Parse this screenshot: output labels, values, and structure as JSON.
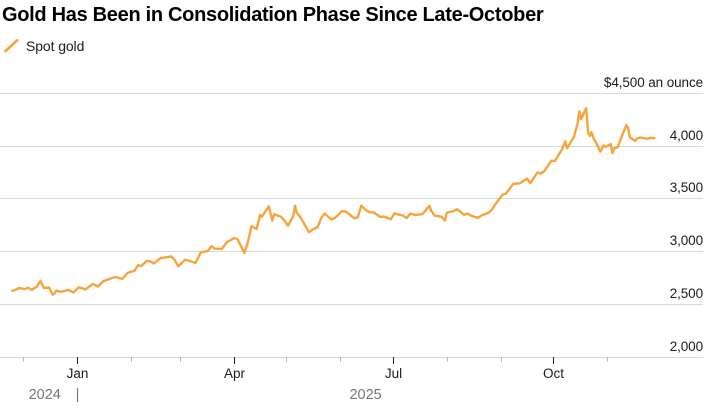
{
  "header": {
    "title": "Gold Has Been in Consolidation Phase Since Late-October"
  },
  "legend": {
    "label": "Spot gold"
  },
  "colors": {
    "line": "#F6A43B",
    "grid": "#D8D8D8",
    "title_text": "#000000",
    "axis_text": "#1B1B1B",
    "year_text": "#767676",
    "tick_minor": "#BCBCBC",
    "tick_major": "#1B1B1B",
    "background": "#FFFFFF"
  },
  "chart_data": {
    "type": "line",
    "title": "Gold Has Been in Consolidation Phase Since Late-October",
    "grid": true,
    "legend_position": "top-left",
    "y_axis": {
      "min": 2000,
      "max": 4500,
      "unit_label": "$4,500 an ounce",
      "ticks": [
        {
          "value": 4500,
          "label": "$4,500 an ounce"
        },
        {
          "value": 4000,
          "label": "4,000"
        },
        {
          "value": 3500,
          "label": "3,500"
        },
        {
          "value": 3000,
          "label": "3,000"
        },
        {
          "value": 2500,
          "label": "2,500"
        },
        {
          "value": 2000,
          "label": "2,000"
        }
      ]
    },
    "x_axis": {
      "major_ticks": [
        {
          "date": "2025-01-01",
          "label": "Jan"
        },
        {
          "date": "2025-04-01",
          "label": "Apr"
        },
        {
          "date": "2025-07-01",
          "label": "Jul"
        },
        {
          "date": "2025-10-01",
          "label": "Oct"
        }
      ],
      "minor_ticks": [
        "2024-12-01",
        "2025-02-01",
        "2025-03-01",
        "2025-05-01",
        "2025-06-01",
        "2025-08-01",
        "2025-09-01",
        "2025-11-01"
      ],
      "year_labels": [
        {
          "label": "2024",
          "position": "start-of-range"
        },
        {
          "label": "|",
          "position": "year-boundary"
        },
        {
          "label": "2025",
          "position": "center-of-2025"
        }
      ]
    },
    "series": [
      {
        "name": "Spot gold",
        "points": [
          [
            "2024-11-25",
            2622
          ],
          [
            "2024-11-27",
            2636
          ],
          [
            "2024-11-29",
            2650
          ],
          [
            "2024-12-02",
            2639
          ],
          [
            "2024-12-04",
            2652
          ],
          [
            "2024-12-06",
            2633
          ],
          [
            "2024-12-09",
            2662
          ],
          [
            "2024-12-11",
            2718
          ],
          [
            "2024-12-12",
            2682
          ],
          [
            "2024-12-13",
            2650
          ],
          [
            "2024-12-16",
            2655
          ],
          [
            "2024-12-18",
            2586
          ],
          [
            "2024-12-19",
            2596
          ],
          [
            "2024-12-20",
            2624
          ],
          [
            "2024-12-23",
            2614
          ],
          [
            "2024-12-27",
            2632
          ],
          [
            "2024-12-30",
            2607
          ],
          [
            "2025-01-02",
            2657
          ],
          [
            "2025-01-06",
            2637
          ],
          [
            "2025-01-08",
            2662
          ],
          [
            "2025-01-10",
            2690
          ],
          [
            "2025-01-13",
            2664
          ],
          [
            "2025-01-16",
            2714
          ],
          [
            "2025-01-21",
            2745
          ],
          [
            "2025-01-23",
            2754
          ],
          [
            "2025-01-27",
            2737
          ],
          [
            "2025-01-30",
            2793
          ],
          [
            "2025-02-03",
            2814
          ],
          [
            "2025-02-05",
            2866
          ],
          [
            "2025-02-07",
            2860
          ],
          [
            "2025-02-10",
            2906
          ],
          [
            "2025-02-12",
            2903
          ],
          [
            "2025-02-14",
            2882
          ],
          [
            "2025-02-18",
            2934
          ],
          [
            "2025-02-20",
            2938
          ],
          [
            "2025-02-24",
            2950
          ],
          [
            "2025-02-26",
            2915
          ],
          [
            "2025-02-28",
            2857
          ],
          [
            "2025-03-04",
            2918
          ],
          [
            "2025-03-06",
            2910
          ],
          [
            "2025-03-10",
            2888
          ],
          [
            "2025-03-13",
            2988
          ],
          [
            "2025-03-17",
            3000
          ],
          [
            "2025-03-19",
            3046
          ],
          [
            "2025-03-21",
            3023
          ],
          [
            "2025-03-25",
            3021
          ],
          [
            "2025-03-28",
            3084
          ],
          [
            "2025-04-01",
            3123
          ],
          [
            "2025-04-03",
            3115
          ],
          [
            "2025-04-07",
            2983
          ],
          [
            "2025-04-09",
            3082
          ],
          [
            "2025-04-11",
            3237
          ],
          [
            "2025-04-14",
            3210
          ],
          [
            "2025-04-16",
            3343
          ],
          [
            "2025-04-17",
            3326
          ],
          [
            "2025-04-21",
            3425
          ],
          [
            "2025-04-23",
            3288
          ],
          [
            "2025-04-24",
            3348
          ],
          [
            "2025-04-28",
            3325
          ],
          [
            "2025-04-30",
            3289
          ],
          [
            "2025-05-02",
            3240
          ],
          [
            "2025-05-05",
            3333
          ],
          [
            "2025-05-06",
            3430
          ],
          [
            "2025-05-07",
            3365
          ],
          [
            "2025-05-09",
            3325
          ],
          [
            "2025-05-12",
            3236
          ],
          [
            "2025-05-14",
            3178
          ],
          [
            "2025-05-16",
            3203
          ],
          [
            "2025-05-19",
            3229
          ],
          [
            "2025-05-21",
            3314
          ],
          [
            "2025-05-23",
            3357
          ],
          [
            "2025-05-27",
            3300
          ],
          [
            "2025-05-29",
            3316
          ],
          [
            "2025-06-02",
            3380
          ],
          [
            "2025-06-04",
            3375
          ],
          [
            "2025-06-06",
            3352
          ],
          [
            "2025-06-09",
            3311
          ],
          [
            "2025-06-11",
            3322
          ],
          [
            "2025-06-13",
            3432
          ],
          [
            "2025-06-16",
            3384
          ],
          [
            "2025-06-18",
            3369
          ],
          [
            "2025-06-20",
            3368
          ],
          [
            "2025-06-24",
            3323
          ],
          [
            "2025-06-26",
            3328
          ],
          [
            "2025-06-30",
            3303
          ],
          [
            "2025-07-02",
            3357
          ],
          [
            "2025-07-07",
            3337
          ],
          [
            "2025-07-09",
            3313
          ],
          [
            "2025-07-11",
            3355
          ],
          [
            "2025-07-14",
            3343
          ],
          [
            "2025-07-16",
            3346
          ],
          [
            "2025-07-18",
            3350
          ],
          [
            "2025-07-22",
            3430
          ],
          [
            "2025-07-23",
            3387
          ],
          [
            "2025-07-25",
            3337
          ],
          [
            "2025-07-29",
            3326
          ],
          [
            "2025-07-31",
            3290
          ],
          [
            "2025-08-01",
            3362
          ],
          [
            "2025-08-05",
            3380
          ],
          [
            "2025-08-07",
            3397
          ],
          [
            "2025-08-11",
            3344
          ],
          [
            "2025-08-13",
            3357
          ],
          [
            "2025-08-15",
            3336
          ],
          [
            "2025-08-19",
            3316
          ],
          [
            "2025-08-21",
            3339
          ],
          [
            "2025-08-25",
            3365
          ],
          [
            "2025-08-27",
            3396
          ],
          [
            "2025-08-29",
            3448
          ],
          [
            "2025-09-02",
            3533
          ],
          [
            "2025-09-04",
            3546
          ],
          [
            "2025-09-08",
            3636
          ],
          [
            "2025-09-10",
            3641
          ],
          [
            "2025-09-12",
            3643
          ],
          [
            "2025-09-16",
            3689
          ],
          [
            "2025-09-18",
            3644
          ],
          [
            "2025-09-22",
            3746
          ],
          [
            "2025-09-24",
            3736
          ],
          [
            "2025-09-26",
            3760
          ],
          [
            "2025-09-30",
            3858
          ],
          [
            "2025-10-02",
            3856
          ],
          [
            "2025-10-06",
            3961
          ],
          [
            "2025-10-08",
            4041
          ],
          [
            "2025-10-09",
            3976
          ],
          [
            "2025-10-13",
            4085
          ],
          [
            "2025-10-15",
            4209
          ],
          [
            "2025-10-16",
            4326
          ],
          [
            "2025-10-17",
            4251
          ],
          [
            "2025-10-20",
            4356
          ],
          [
            "2025-10-21",
            4126
          ],
          [
            "2025-10-22",
            4092
          ],
          [
            "2025-10-23",
            4128
          ],
          [
            "2025-10-24",
            4079
          ],
          [
            "2025-10-27",
            3984
          ],
          [
            "2025-10-28",
            3944
          ],
          [
            "2025-10-30",
            4003
          ],
          [
            "2025-10-31",
            3989
          ],
          [
            "2025-11-03",
            4016
          ],
          [
            "2025-11-04",
            3931
          ],
          [
            "2025-11-05",
            3975
          ],
          [
            "2025-11-07",
            3985
          ],
          [
            "2025-11-10",
            4117
          ],
          [
            "2025-11-12",
            4194
          ],
          [
            "2025-11-13",
            4170
          ],
          [
            "2025-11-14",
            4082
          ],
          [
            "2025-11-17",
            4046
          ],
          [
            "2025-11-18",
            4068
          ],
          [
            "2025-11-20",
            4078
          ],
          [
            "2025-11-24",
            4066
          ],
          [
            "2025-11-26",
            4075
          ],
          [
            "2025-11-28",
            4072
          ]
        ]
      }
    ]
  }
}
